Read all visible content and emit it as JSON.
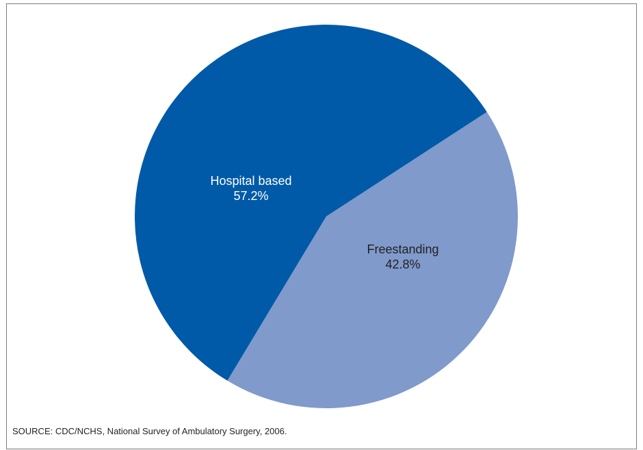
{
  "chart_data": {
    "type": "pie",
    "title": "",
    "slices": [
      {
        "label": "Hospital based",
        "value": 57.2,
        "value_label": "57.2%",
        "color": "#005aa8",
        "label_color": "#ffffff"
      },
      {
        "label": "Freestanding",
        "value": 42.8,
        "value_label": "42.8%",
        "color": "#7f9acb",
        "label_color": "#231f20"
      }
    ],
    "legend": "none",
    "labels": "inside slices"
  },
  "source": "SOURCE: CDC/NCHS, National Survey of Ambulatory Surgery, 2006."
}
